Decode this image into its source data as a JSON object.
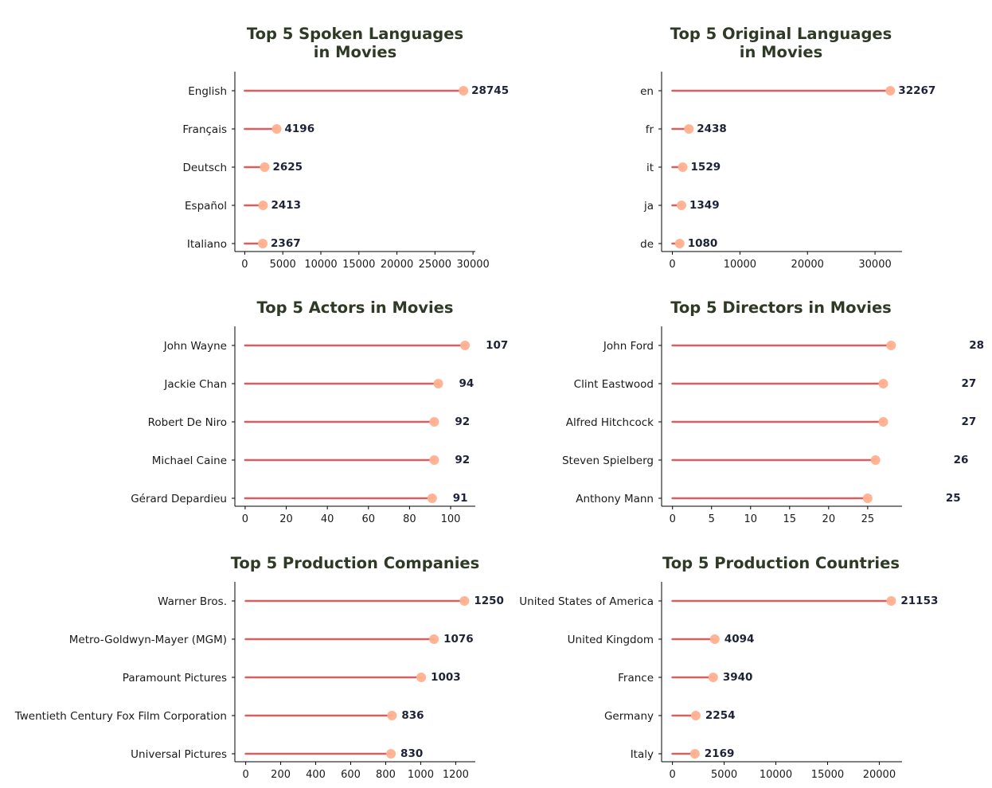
{
  "style": {
    "stem_color": "#d65f5f",
    "dot_color": "#ffb08f",
    "title_color": "#2f3a26",
    "value_color": "#1c2238"
  },
  "chart_data": [
    {
      "type": "lollipop",
      "title": [
        "Top 5 Spoken Languages",
        "in Movies"
      ],
      "categories": [
        "English",
        "Français",
        "Deutsch",
        "Español",
        "Italiano"
      ],
      "values": [
        28745,
        4196,
        2625,
        2413,
        2367
      ],
      "xlim": [
        -1300,
        30300
      ],
      "xticks": [
        0,
        5000,
        10000,
        15000,
        20000,
        25000,
        30000
      ],
      "grid": false
    },
    {
      "type": "lollipop",
      "title": [
        "Top 5 Original Languages",
        "in Movies"
      ],
      "categories": [
        "en",
        "fr",
        "it",
        "ja",
        "de"
      ],
      "values": [
        32267,
        2438,
        1529,
        1349,
        1080
      ],
      "xlim": [
        -1600,
        34000
      ],
      "xticks": [
        0,
        10000,
        20000,
        30000
      ],
      "grid": false
    },
    {
      "type": "lollipop",
      "title": [
        "Top 5 Actors in Movies"
      ],
      "categories": [
        "John Wayne",
        "Jackie Chan",
        "Robert De Niro",
        "Michael Caine",
        "Gérard Depardieu"
      ],
      "values": [
        107,
        94,
        92,
        92,
        91
      ],
      "xlim": [
        -5,
        112
      ],
      "xticks": [
        0,
        20,
        40,
        60,
        80,
        100
      ],
      "grid": false
    },
    {
      "type": "lollipop",
      "title": [
        "Top 5 Directors in Movies"
      ],
      "categories": [
        "John Ford",
        "Clint Eastwood",
        "Alfred Hitchcock",
        "Steven Spielberg",
        "Anthony Mann"
      ],
      "values": [
        28,
        27,
        27,
        26,
        25
      ],
      "xlim": [
        -1.4,
        29.4
      ],
      "xticks": [
        0,
        5,
        10,
        15,
        20,
        25
      ],
      "grid": false
    },
    {
      "type": "lollipop",
      "title": [
        "Top 5 Production Companies"
      ],
      "categories": [
        "Warner Bros.",
        "Metro-Goldwyn-Mayer (MGM)",
        "Paramount Pictures",
        "Twentieth Century Fox Film Corporation",
        "Universal Pictures"
      ],
      "values": [
        1250,
        1076,
        1003,
        836,
        830
      ],
      "xlim": [
        -62,
        1312
      ],
      "xticks": [
        0,
        200,
        400,
        600,
        800,
        1000,
        1200
      ],
      "grid": false
    },
    {
      "type": "lollipop",
      "title": [
        "Top 5 Production Countries"
      ],
      "categories": [
        "United States of America",
        "United Kingdom",
        "France",
        "Germany",
        "Italy"
      ],
      "values": [
        21153,
        4094,
        3940,
        2254,
        2169
      ],
      "xlim": [
        -1050,
        22200
      ],
      "xticks": [
        0,
        5000,
        10000,
        15000,
        20000
      ],
      "grid": false
    }
  ]
}
